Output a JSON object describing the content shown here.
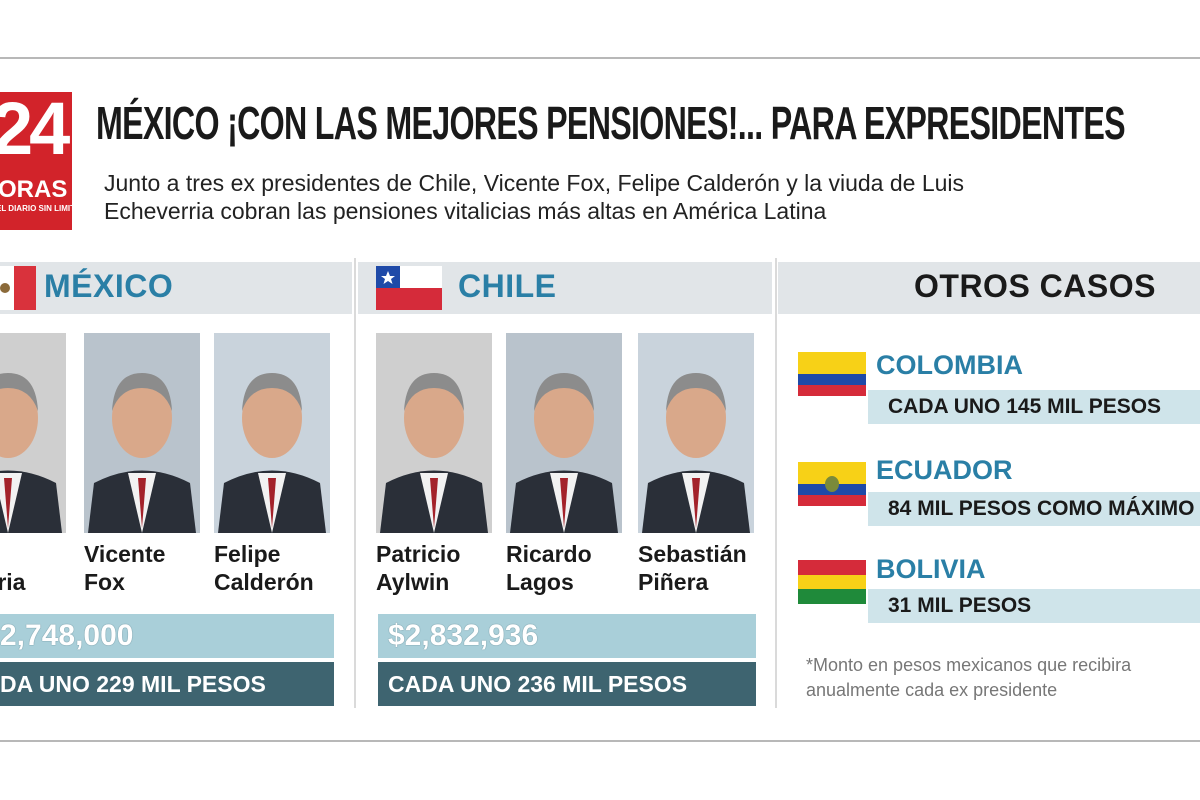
{
  "header": {
    "logo": {
      "number": "24",
      "word": "ORAS",
      "tagline": "EL DIARIO SIN LIMITES"
    },
    "title": "MÉXICO ¡CON LAS MEJORES PENSIONES!... PARA EXPRESIDENTES",
    "subtitle": [
      "Junto a tres ex presidentes de Chile, Vicente Fox, Felipe Calderón y la viuda de Luis",
      "Echeverria cobran las pensiones vitalicias más altas en América Latina"
    ]
  },
  "sections": [
    {
      "country": "MÉXICO",
      "people": [
        [
          "",
          "everria"
        ],
        [
          "Vicente",
          "Fox"
        ],
        [
          "Felipe",
          "Calderón"
        ]
      ],
      "total": "2,748,000",
      "each": "DA UNO 229 MIL PESOS"
    },
    {
      "country": "CHILE",
      "people": [
        [
          "Patricio",
          "Aylwin"
        ],
        [
          "Ricardo",
          "Lagos"
        ],
        [
          "Sebastián",
          "Piñera"
        ]
      ],
      "total": "$2,832,936",
      "each": "CADA UNO 236 MIL PESOS"
    }
  ],
  "other_cases": {
    "title": "OTROS CASOS",
    "countries": [
      {
        "name": "COLOMBIA",
        "amount": "CADA UNO 145 MIL PESOS"
      },
      {
        "name": "ECUADOR",
        "amount": "84 MIL PESOS COMO MÁXIMO"
      },
      {
        "name": "BOLIVIA",
        "amount": "31 MIL PESOS"
      }
    ],
    "footnote": [
      "*Monto en pesos mexicanos que recibira",
      "anualmente cada ex presidente"
    ]
  }
}
